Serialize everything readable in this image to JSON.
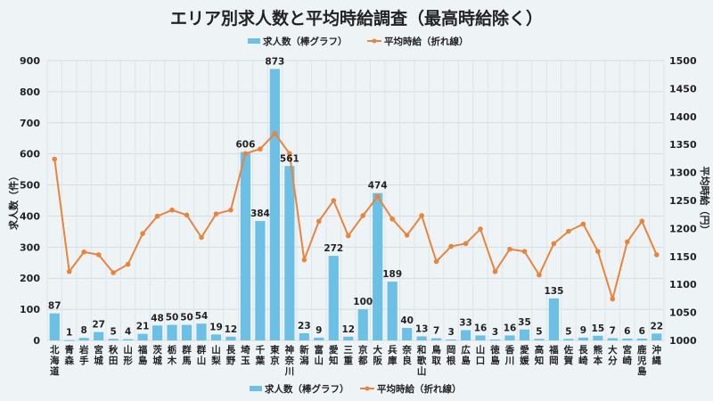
{
  "chart_data": {
    "type": "bar+line",
    "title": "エリア別求人数と平均時給調査（最高時給除く）",
    "ylabel_left": "求人数（件）",
    "ylabel_right": "平均時給（円）",
    "ylim_left": [
      0,
      900
    ],
    "ylim_right": [
      1000,
      1500
    ],
    "yticks_left": [
      0,
      100,
      200,
      300,
      400,
      500,
      600,
      700,
      800,
      900
    ],
    "yticks_right": [
      1000,
      1050,
      1100,
      1150,
      1200,
      1250,
      1300,
      1350,
      1400,
      1450,
      1500
    ],
    "grid": true,
    "legend_placement": "top and bottom",
    "categories": [
      "北海道",
      "青森",
      "岩手",
      "宮城",
      "秋田",
      "山形",
      "福島",
      "茨城",
      "栃木",
      "群馬",
      "群山",
      "山梨",
      "長野",
      "埼玉",
      "千葉",
      "東京",
      "神奈川",
      "新潟",
      "富山",
      "愛知",
      "三重",
      "京都",
      "大阪",
      "兵庫",
      "奈良",
      "和歌山",
      "鳥取",
      "岡根",
      "広島",
      "山口",
      "徳島",
      "香川",
      "愛媛",
      "高知",
      "福岡",
      "佐賀",
      "長崎",
      "熊本",
      "大分",
      "宮崎",
      "鹿児島",
      "沖縄"
    ],
    "series": [
      {
        "name": "求人数（棒グラフ）",
        "type": "bar",
        "axis": "left",
        "color": "#6cc0e6",
        "values": [
          87,
          1,
          8,
          27,
          5,
          4,
          21,
          48,
          50,
          50,
          54,
          19,
          12,
          606,
          384,
          873,
          561,
          23,
          9,
          272,
          12,
          100,
          474,
          189,
          40,
          13,
          7,
          3,
          33,
          16,
          3,
          16,
          35,
          5,
          135,
          5,
          9,
          15,
          7,
          6,
          6,
          22
        ]
      },
      {
        "name": "平均時給（折れ線）",
        "type": "line",
        "axis": "right",
        "color": "#e8843c",
        "values": [
          1324,
          1123,
          1158,
          1153,
          1121,
          1136,
          1191,
          1222,
          1233,
          1224,
          1184,
          1226,
          1233,
          1334,
          1342,
          1370,
          1334,
          1144,
          1213,
          1250,
          1187,
          1223,
          1257,
          1217,
          1188,
          1223,
          1141,
          1168,
          1173,
          1199,
          1123,
          1163,
          1159,
          1117,
          1173,
          1195,
          1208,
          1159,
          1074,
          1176,
          1213,
          1153
        ]
      }
    ]
  }
}
